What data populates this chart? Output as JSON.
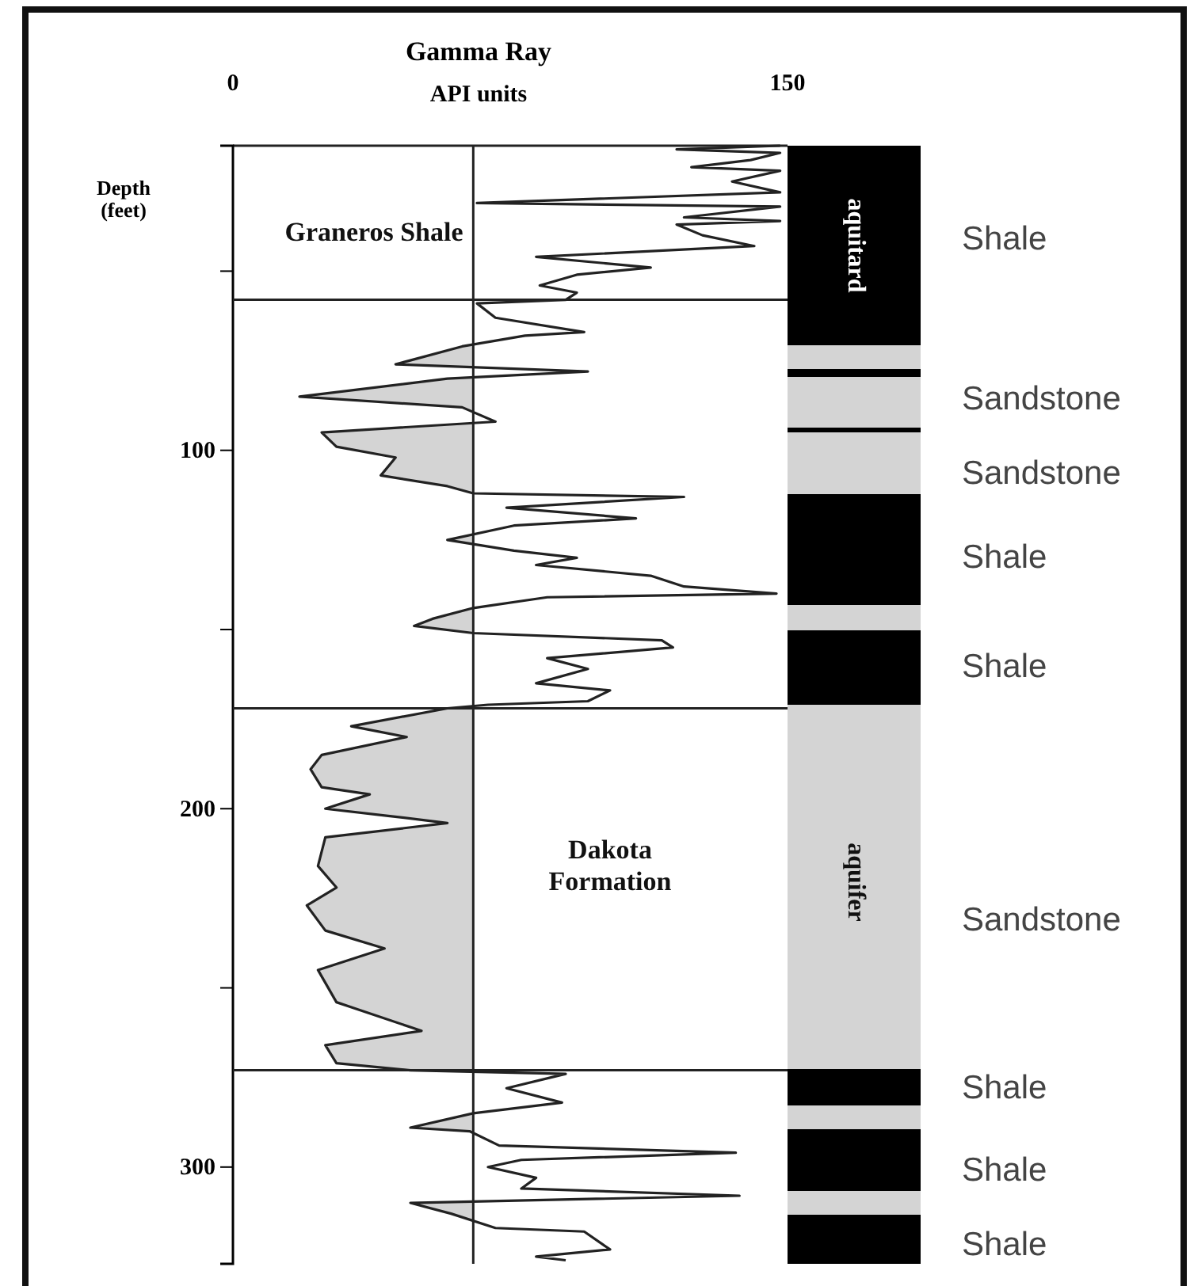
{
  "chart_data": {
    "type": "line",
    "title": "Gamma Ray",
    "xlabel": "API units",
    "ylabel": "Depth\n(feet)",
    "xlim": [
      0,
      150
    ],
    "xticks": [
      0,
      150
    ],
    "ylim": [
      327,
      15
    ],
    "yticks": [
      {
        "value": 50,
        "label": null
      },
      100,
      {
        "value": 150,
        "label": null
      },
      200,
      {
        "value": 250,
        "label": null
      },
      300
    ],
    "series": [
      {
        "color": "#222222",
        "x": [
          148,
          120,
          148,
          140,
          124,
          148,
          135,
          148,
          66,
          148,
          122,
          148,
          120,
          127,
          141,
          82,
          113,
          93,
          83,
          93,
          90,
          66,
          71,
          95,
          79,
          62,
          44,
          96,
          58,
          18,
          62,
          71,
          24,
          28,
          44,
          40,
          58,
          65,
          122,
          74,
          109,
          76,
          58,
          76,
          93,
          82,
          113,
          122,
          147,
          85,
          65,
          54,
          49,
          65,
          116,
          119,
          85,
          96,
          82,
          102,
          96,
          69,
          58,
          32,
          47,
          24,
          21,
          24,
          37,
          25,
          42,
          58,
          25,
          23,
          28,
          20,
          25,
          41,
          23,
          28,
          51,
          25,
          28,
          48,
          90,
          74,
          89,
          65,
          48,
          64,
          72,
          136,
          78,
          69,
          82,
          78,
          137,
          48,
          59,
          71,
          95,
          102,
          82,
          90
        ],
        "values": [
          15,
          16,
          17,
          19,
          21,
          22,
          25,
          28,
          31,
          32,
          35,
          36,
          37,
          40,
          43,
          46,
          49,
          51,
          54,
          56,
          58,
          59,
          63,
          67,
          68,
          71,
          76,
          78,
          80,
          85,
          88,
          92,
          95,
          99,
          102,
          107,
          110,
          112,
          113,
          116,
          119,
          121,
          125,
          128,
          130,
          132,
          135,
          138,
          140,
          141,
          144,
          147,
          149,
          151,
          153,
          155,
          158,
          161,
          165,
          167,
          170,
          171,
          172,
          177,
          180,
          185,
          189,
          194,
          196,
          200,
          202,
          204,
          208,
          216,
          222,
          227,
          234,
          239,
          245,
          254,
          262,
          266,
          271,
          273,
          274,
          278,
          282,
          285,
          289,
          290,
          294,
          296,
          298,
          300,
          303,
          306,
          308,
          310,
          313,
          317,
          318,
          323,
          325,
          326
        ]
      }
    ],
    "ref_lines": [
      {
        "axis": "x",
        "value": 65
      },
      {
        "axis": "y",
        "value": 58
      },
      {
        "axis": "y",
        "value": 172
      },
      {
        "axis": "y",
        "value": 273
      }
    ],
    "annotations": [
      "Graneros Shale",
      "Dakota\nFormation",
      "aquitard",
      "aquifer",
      "Shale",
      "Sandstone",
      "Sandstone",
      "Shale",
      "Shale",
      "Sandstone",
      "Shale",
      "Shale",
      "Shale"
    ]
  }
}
